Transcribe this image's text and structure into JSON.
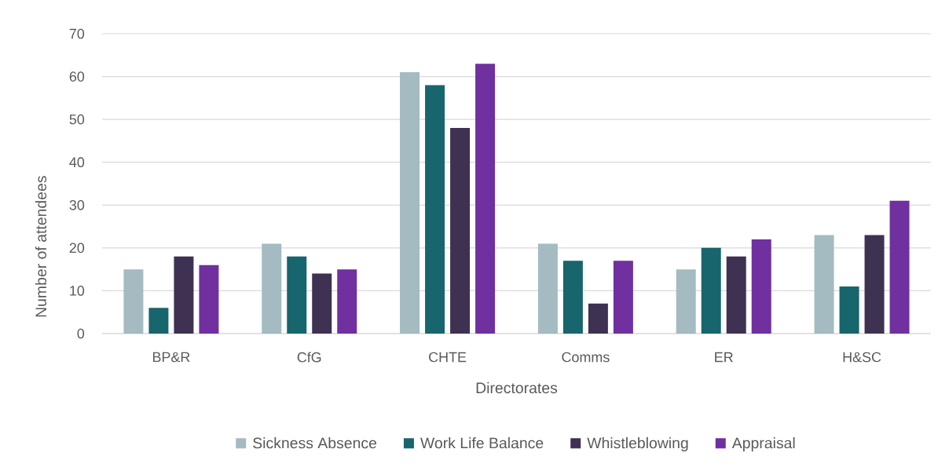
{
  "chart_data": {
    "type": "bar",
    "xlabel": "Directorates",
    "ylabel": "Number of attendees",
    "categories": [
      "BP&R",
      "CfG",
      "CHTE",
      "Comms",
      "ER",
      "H&SC"
    ],
    "series": [
      {
        "name": "Sickness Absence",
        "color": "#a3bbc1",
        "values": [
          15,
          21,
          61,
          21,
          15,
          23
        ]
      },
      {
        "name": "Work Life Balance",
        "color": "#17656d",
        "values": [
          6,
          18,
          58,
          17,
          20,
          11
        ]
      },
      {
        "name": "Whistleblowing",
        "color": "#3e3152",
        "values": [
          18,
          14,
          48,
          7,
          18,
          23
        ]
      },
      {
        "name": "Appraisal",
        "color": "#7030a0",
        "values": [
          16,
          15,
          63,
          17,
          22,
          31
        ]
      }
    ],
    "ylim": [
      0,
      70
    ],
    "yticks": [
      0,
      10,
      20,
      30,
      40,
      50,
      60,
      70
    ],
    "grid": "y",
    "legend": "bottom"
  }
}
